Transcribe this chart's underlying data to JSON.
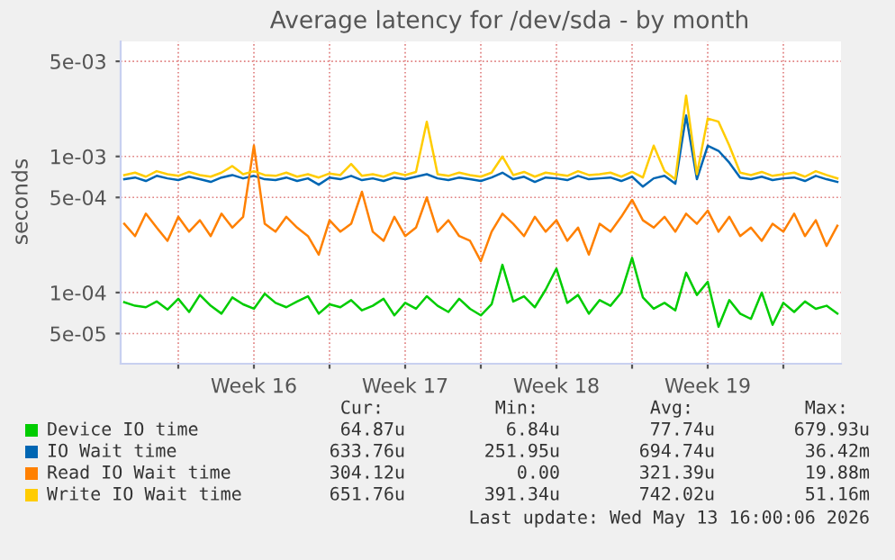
{
  "chart_data": {
    "type": "line",
    "title": "Average latency for /dev/sda - by month",
    "ylabel": "seconds",
    "x": [
      "2026-04-10T12:00",
      "2026-04-11T00:00",
      "2026-04-11T12:00",
      "2026-04-12T00:00",
      "2026-04-12T12:00",
      "2026-04-13T00:00",
      "2026-04-13T12:00",
      "2026-04-14T00:00",
      "2026-04-14T12:00",
      "2026-04-15T00:00",
      "2026-04-15T12:00",
      "2026-04-16T00:00",
      "2026-04-16T12:00",
      "2026-04-17T00:00",
      "2026-04-17T12:00",
      "2026-04-18T00:00",
      "2026-04-18T12:00",
      "2026-04-19T00:00",
      "2026-04-19T12:00",
      "2026-04-20T00:00",
      "2026-04-20T12:00",
      "2026-04-21T00:00",
      "2026-04-21T12:00",
      "2026-04-22T00:00",
      "2026-04-22T12:00",
      "2026-04-23T00:00",
      "2026-04-23T12:00",
      "2026-04-24T00:00",
      "2026-04-24T12:00",
      "2026-04-25T00:00",
      "2026-04-25T12:00",
      "2026-04-26T00:00",
      "2026-04-26T12:00",
      "2026-04-27T00:00",
      "2026-04-27T12:00",
      "2026-04-28T00:00",
      "2026-04-28T12:00",
      "2026-04-29T00:00",
      "2026-04-29T12:00",
      "2026-04-30T00:00",
      "2026-04-30T12:00",
      "2026-05-01T00:00",
      "2026-05-01T12:00",
      "2026-05-02T00:00",
      "2026-05-02T12:00",
      "2026-05-03T00:00",
      "2026-05-03T12:00",
      "2026-05-04T00:00",
      "2026-05-04T12:00",
      "2026-05-05T00:00",
      "2026-05-05T12:00",
      "2026-05-06T00:00",
      "2026-05-06T12:00",
      "2026-05-07T00:00",
      "2026-05-07T12:00",
      "2026-05-08T00:00",
      "2026-05-08T12:00",
      "2026-05-09T00:00",
      "2026-05-09T12:00",
      "2026-05-10T00:00",
      "2026-05-10T12:00",
      "2026-05-11T00:00",
      "2026-05-11T12:00",
      "2026-05-12T00:00",
      "2026-05-12T12:00",
      "2026-05-13T00:00",
      "2026-05-13T12:00"
    ],
    "series": [
      {
        "name": "Device IO time",
        "color": "#00cc00",
        "values": [
          8.5e-05,
          8e-05,
          7.8e-05,
          8.6e-05,
          7.5e-05,
          9e-05,
          7.2e-05,
          9.6e-05,
          8e-05,
          7e-05,
          9.2e-05,
          8.2e-05,
          7.6e-05,
          9.8e-05,
          8.4e-05,
          7.8e-05,
          8.6e-05,
          9.4e-05,
          7e-05,
          8.2e-05,
          7.8e-05,
          8.8e-05,
          7.4e-05,
          8e-05,
          9e-05,
          6.8e-05,
          8.4e-05,
          7.6e-05,
          9.4e-05,
          8e-05,
          7.2e-05,
          9e-05,
          7.6e-05,
          6.8e-05,
          8.2e-05,
          0.00016,
          8.6e-05,
          9.4e-05,
          7.8e-05,
          0.000105,
          0.00015,
          8.4e-05,
          9.6e-05,
          7e-05,
          8.8e-05,
          8e-05,
          0.0001,
          0.00018,
          9.2e-05,
          7.6e-05,
          8.4e-05,
          7.4e-05,
          0.00014,
          9.6e-05,
          0.00012,
          5.6e-05,
          8.8e-05,
          7e-05,
          6.4e-05,
          0.0001,
          5.8e-05,
          8.4e-05,
          7.2e-05,
          8.6e-05,
          7.6e-05,
          8e-05,
          7e-05
        ]
      },
      {
        "name": "IO Wait time",
        "color": "#0066b3",
        "values": [
          0.00068,
          0.0007,
          0.00066,
          0.00072,
          0.00069,
          0.00067,
          0.00071,
          0.00068,
          0.00065,
          0.0007,
          0.00073,
          0.00069,
          0.00072,
          0.00068,
          0.00067,
          0.0007,
          0.00066,
          0.00069,
          0.00062,
          0.0007,
          0.00068,
          0.00072,
          0.00067,
          0.00069,
          0.00066,
          0.0007,
          0.00068,
          0.00071,
          0.00074,
          0.00069,
          0.00067,
          0.0007,
          0.00068,
          0.00066,
          0.0007,
          0.00076,
          0.00068,
          0.00071,
          0.00065,
          0.0007,
          0.00069,
          0.00067,
          0.00072,
          0.00068,
          0.00069,
          0.0007,
          0.00066,
          0.00071,
          0.0006,
          0.00069,
          0.00072,
          0.00063,
          0.002,
          0.00068,
          0.0012,
          0.0011,
          0.0009,
          0.0007,
          0.00068,
          0.00071,
          0.00067,
          0.00069,
          0.0007,
          0.00066,
          0.00072,
          0.00068,
          0.00065
        ]
      },
      {
        "name": "Read IO Wait time",
        "color": "#ff8000",
        "values": [
          0.00032,
          0.00026,
          0.00038,
          0.0003,
          0.00024,
          0.00036,
          0.00028,
          0.00034,
          0.00026,
          0.00038,
          0.0003,
          0.00036,
          0.0012,
          0.00032,
          0.00028,
          0.00036,
          0.0003,
          0.00026,
          0.00019,
          0.00034,
          0.00028,
          0.00032,
          0.00055,
          0.00028,
          0.00024,
          0.00036,
          0.00026,
          0.0003,
          0.0005,
          0.00028,
          0.00034,
          0.00026,
          0.00024,
          0.00017,
          0.00028,
          0.00038,
          0.00032,
          0.00026,
          0.00036,
          0.00028,
          0.00034,
          0.00024,
          0.0003,
          0.00019,
          0.00032,
          0.00028,
          0.00036,
          0.00048,
          0.00034,
          0.0003,
          0.00036,
          0.00028,
          0.00038,
          0.00032,
          0.0004,
          0.00028,
          0.00036,
          0.00026,
          0.0003,
          0.00024,
          0.00032,
          0.00028,
          0.00038,
          0.00026,
          0.00034,
          0.00022,
          0.00031
        ]
      },
      {
        "name": "Write IO Wait time",
        "color": "#ffcc00",
        "values": [
          0.00073,
          0.00076,
          0.00071,
          0.00078,
          0.00074,
          0.00072,
          0.00077,
          0.00073,
          0.00071,
          0.00076,
          0.00085,
          0.00074,
          0.00078,
          0.00073,
          0.00072,
          0.00076,
          0.00071,
          0.00074,
          0.0007,
          0.00075,
          0.00073,
          0.00088,
          0.00072,
          0.00074,
          0.00071,
          0.00076,
          0.00073,
          0.00077,
          0.0018,
          0.00074,
          0.00072,
          0.00076,
          0.00073,
          0.00071,
          0.00076,
          0.001,
          0.00073,
          0.00077,
          0.00071,
          0.00076,
          0.00074,
          0.00072,
          0.00078,
          0.00073,
          0.00074,
          0.00076,
          0.00071,
          0.00077,
          0.0007,
          0.0012,
          0.00078,
          0.00068,
          0.0028,
          0.00074,
          0.0019,
          0.0018,
          0.0012,
          0.00076,
          0.00073,
          0.00077,
          0.00072,
          0.00074,
          0.00076,
          0.00071,
          0.00078,
          0.00073,
          0.00069
        ]
      }
    ],
    "log": "y",
    "ylim": [
      3e-05,
      0.007
    ],
    "yticks": [
      {
        "value": 5e-05,
        "label": "5e-05"
      },
      {
        "value": 0.0001,
        "label": "1e-04"
      },
      {
        "value": 0.0005,
        "label": "5e-04"
      },
      {
        "value": 0.001,
        "label": "1e-03"
      },
      {
        "value": 0.005,
        "label": "5e-03"
      }
    ],
    "xlim": [
      "2026-04-10T08:00",
      "2026-05-13T16:00"
    ],
    "xticks": [
      {
        "value": "2026-04-13T00:00",
        "label": null
      },
      {
        "value": "2026-04-16T12:00",
        "label": "Week 16"
      },
      {
        "value": "2026-04-20T00:00",
        "label": null
      },
      {
        "value": "2026-04-23T12:00",
        "label": "Week 17"
      },
      {
        "value": "2026-04-27T00:00",
        "label": null
      },
      {
        "value": "2026-04-30T12:00",
        "label": "Week 18"
      },
      {
        "value": "2026-05-04T00:00",
        "label": null
      },
      {
        "value": "2026-05-07T12:00",
        "label": "Week 19"
      },
      {
        "value": "2026-05-11T00:00",
        "label": null
      }
    ],
    "grid": true,
    "legend": "bottom",
    "line_style": "solid",
    "marker": "none",
    "annotations": [
      "Cur:",
      "Min:",
      "Avg:",
      "Max:",
      "64.87u",
      "6.84u",
      "77.74u",
      "679.93u",
      "633.76u",
      "251.95u",
      "694.74u",
      "36.42m",
      "304.12u",
      "0.00",
      "321.39u",
      "19.88m",
      "651.76u",
      "391.34u",
      "742.02u",
      "51.16m",
      "Last update: Wed May 13 16:00:06 2026"
    ]
  }
}
